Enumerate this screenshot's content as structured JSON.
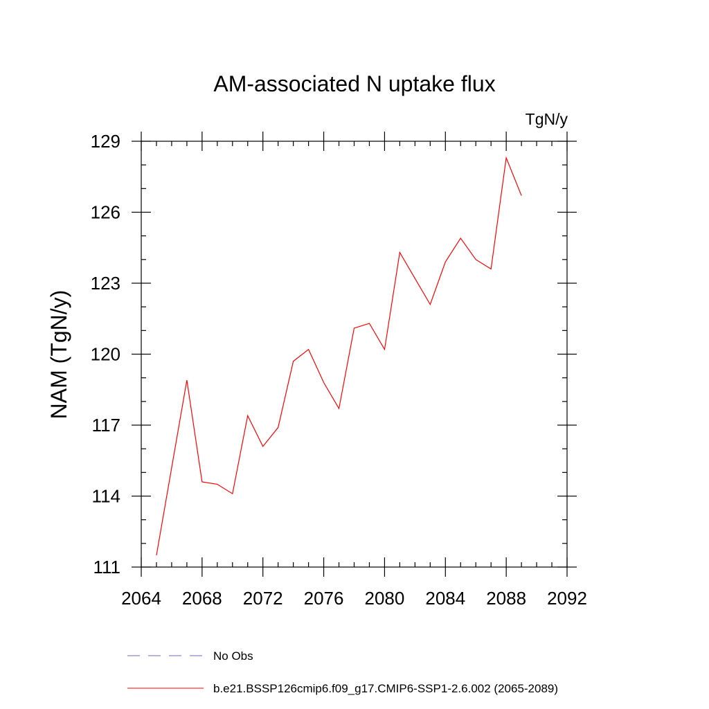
{
  "chart_data": {
    "type": "line",
    "title": "AM-associated N uptake flux",
    "units_label": "TgN/y",
    "ylabel": "NAM  (TgN/y)",
    "xlabel": "",
    "xlim": [
      2064,
      2092
    ],
    "ylim": [
      111,
      129
    ],
    "x_ticks": [
      2064,
      2068,
      2072,
      2076,
      2080,
      2084,
      2088,
      2092
    ],
    "y_ticks": [
      111,
      114,
      117,
      120,
      123,
      126,
      129
    ],
    "x_minor_step": 1,
    "y_minor_step": 1,
    "grid": false,
    "legend_position": "bottom",
    "series": [
      {
        "name": "b.e21.BSSP126cmip6.f09_g17.CMIP6-SSP1-2.6.002 (2065-2089)",
        "color": "#ff0000",
        "style": "solid",
        "x": [
          2065,
          2066,
          2067,
          2068,
          2069,
          2070,
          2071,
          2072,
          2073,
          2074,
          2075,
          2076,
          2077,
          2078,
          2079,
          2080,
          2081,
          2082,
          2083,
          2084,
          2085,
          2086,
          2087,
          2088,
          2089
        ],
        "y": [
          111.5,
          115.2,
          118.9,
          114.6,
          114.5,
          114.1,
          117.4,
          116.1,
          116.9,
          119.7,
          120.2,
          118.8,
          117.7,
          121.1,
          121.3,
          120.2,
          124.3,
          123.2,
          122.1,
          123.9,
          124.9,
          124.0,
          123.6,
          128.3,
          126.7
        ]
      }
    ],
    "legend_entries": [
      {
        "label": "No Obs",
        "color": "#6a6ab8",
        "style": "dashed"
      },
      {
        "label": "b.e21.BSSP126cmip6.f09_g17.CMIP6-SSP1-2.6.002 (2065-2089)",
        "color": "#ff0000",
        "style": "solid"
      }
    ]
  }
}
